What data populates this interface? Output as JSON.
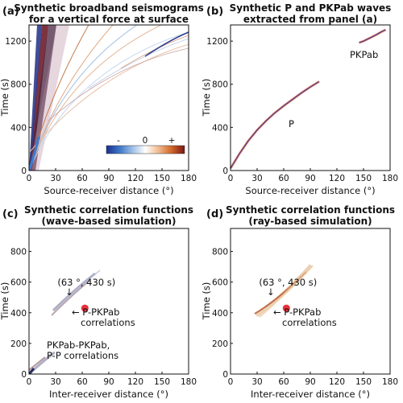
{
  "chart_data": [
    {
      "panel": "(a)",
      "type": "heatmap",
      "title": [
        "Synthetic broadband seismograms",
        "for a vertical force at surface"
      ],
      "xlabel": "Source-receiver distance (°)",
      "ylabel": "Time (s)",
      "xlim": [
        0,
        180
      ],
      "ylim": [
        0,
        1350
      ],
      "xticks": [
        0,
        30,
        60,
        90,
        120,
        150,
        180
      ],
      "yticks": [
        0,
        400,
        800,
        1200
      ],
      "colorbar": {
        "labels": [
          "-",
          "0",
          "+"
        ],
        "colors": [
          "#1a2f8f",
          "#3f78c8",
          "#a9c6e8",
          "#ffffff",
          "#f2c29a",
          "#d26a2a",
          "#7a1515"
        ]
      }
    },
    {
      "panel": "(b)",
      "type": "line",
      "title": [
        "Synthetic P and PKPab waves",
        "extracted from panel (a)"
      ],
      "xlabel": "Source-receiver distance (°)",
      "ylabel": "Time (s)",
      "xlim": [
        0,
        180
      ],
      "ylim": [
        0,
        1350
      ],
      "xticks": [
        0,
        30,
        60,
        90,
        120,
        150,
        180
      ],
      "yticks": [
        0,
        400,
        800,
        1200
      ],
      "series": [
        {
          "name": "P",
          "x": [
            0,
            10,
            20,
            30,
            40,
            50,
            60,
            70,
            80,
            90,
            100
          ],
          "y": [
            20,
            155,
            275,
            375,
            460,
            535,
            600,
            660,
            720,
            775,
            825
          ]
        },
        {
          "name": "PKPab",
          "x": [
            145,
            150,
            155,
            160,
            165,
            170,
            175
          ],
          "y": [
            1185,
            1200,
            1220,
            1240,
            1262,
            1285,
            1305
          ]
        }
      ]
    },
    {
      "panel": "(c)",
      "type": "heatmap",
      "title": [
        "Synthetic correlation functions",
        "(wave-based simulation)"
      ],
      "xlabel": "Inter-receiver distance (°)",
      "ylabel": "Time (s)",
      "xlim": [
        0,
        180
      ],
      "ylim": [
        0,
        950
      ],
      "xticks": [
        0,
        30,
        60,
        90,
        120,
        150,
        180
      ],
      "yticks": [
        0,
        200,
        400,
        600,
        800
      ],
      "marker": {
        "x": 63,
        "y": 430,
        "label": "(63 °, 430 s)"
      },
      "annotations": [
        "← P-PKPab",
        "correlations",
        "PKPab-PKPab,",
        "P-P correlations"
      ]
    },
    {
      "panel": "(d)",
      "type": "heatmap",
      "title": [
        "Synthetic correlation functions",
        "(ray-based simulation)"
      ],
      "xlabel": "Inter-receiver distance (°)",
      "ylabel": "Time (s)",
      "xlim": [
        0,
        180
      ],
      "ylim": [
        0,
        950
      ],
      "xticks": [
        0,
        30,
        60,
        90,
        120,
        150,
        180
      ],
      "yticks": [
        0,
        200,
        400,
        600,
        800
      ],
      "marker": {
        "x": 63,
        "y": 430,
        "label": "(63 °, 430 s)"
      },
      "annotations": [
        "← P-PKPab",
        "correlations"
      ]
    }
  ]
}
